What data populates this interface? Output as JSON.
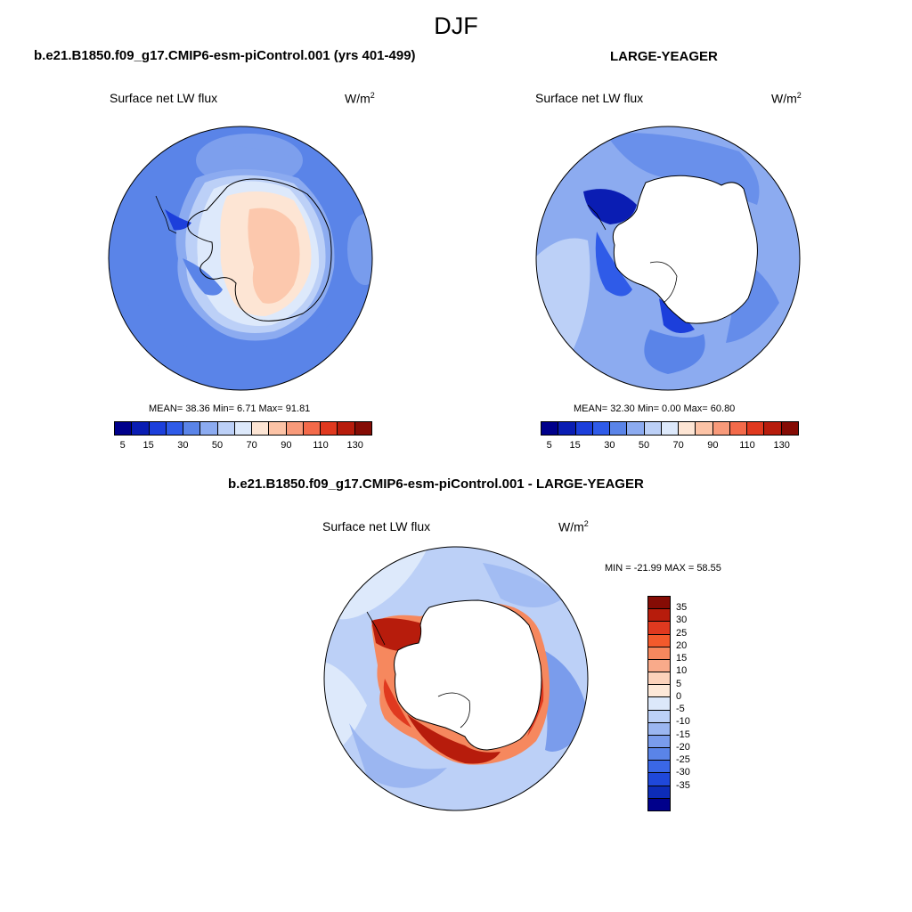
{
  "header": {
    "title": "DJF"
  },
  "panels": [
    {
      "title": "b.e21.B1850.f09_g17.CMIP6-esm-piControl.001 (yrs 401-499)",
      "variable": "Surface net LW flux",
      "units_base": "W/m",
      "units_exp": "2",
      "stats_text": "MEAN=  38.36  Min=   6.71  Max=  91.81"
    },
    {
      "title": "LARGE-YEAGER",
      "variable": "Surface net LW flux",
      "units_base": "W/m",
      "units_exp": "2",
      "stats_text": "MEAN=  32.30  Min=   0.00  Max=  60.80"
    },
    {
      "title": "b.e21.B1850.f09_g17.CMIP6-esm-piControl.001 - LARGE-YEAGER",
      "variable": "Surface net LW flux",
      "units_base": "W/m",
      "units_exp": "2",
      "stats_text": "MIN = -21.99 MAX =  58.55"
    }
  ],
  "colorbar_abs": {
    "colors": [
      "#00008b",
      "#0a1db3",
      "#1c3fdb",
      "#2f5be8",
      "#5a84e8",
      "#8cabf0",
      "#bcd0f7",
      "#dde9fb",
      "#fde5d4",
      "#fcc3a6",
      "#f89a7a",
      "#f36a4a",
      "#e0391f",
      "#b71c0c",
      "#850c05"
    ],
    "tick_labels": [
      "5",
      "15",
      "30",
      "50",
      "70",
      "90",
      "110",
      "130"
    ]
  },
  "colorbar_diff": {
    "colors": [
      "#850c05",
      "#b71c0c",
      "#e0391f",
      "#f35a2c",
      "#f6885e",
      "#f9aa8a",
      "#fcd2bb",
      "#fde8d8",
      "#dce8fa",
      "#bcd0f7",
      "#9bb6f1",
      "#7a9cec",
      "#5a84e8",
      "#3a67e6",
      "#1f48da",
      "#0d2cb8",
      "#00008b"
    ],
    "tick_labels": [
      "35",
      "30",
      "25",
      "20",
      "15",
      "10",
      "5",
      "0",
      "-5",
      "-10",
      "-15",
      "-20",
      "-25",
      "-30",
      "-35"
    ]
  },
  "chart_data": [
    {
      "type": "heatmap",
      "projection": "south-polar-stereographic",
      "title": "b.e21.B1850.f09_g17.CMIP6-esm-piControl.001 (yrs 401-499)",
      "variable": "Surface net LW flux",
      "units": "W/m2",
      "mean": 38.36,
      "min": 6.71,
      "max": 91.81,
      "levels": [
        5,
        10,
        15,
        20,
        30,
        40,
        50,
        60,
        70,
        80,
        90,
        100,
        110,
        120,
        130
      ],
      "legend_position": "bottom"
    },
    {
      "type": "heatmap",
      "projection": "south-polar-stereographic",
      "title": "LARGE-YEAGER",
      "variable": "Surface net LW flux",
      "units": "W/m2",
      "mean": 32.3,
      "min": 0.0,
      "max": 60.8,
      "levels": [
        5,
        10,
        15,
        20,
        30,
        40,
        50,
        60,
        70,
        80,
        90,
        100,
        110,
        120,
        130
      ],
      "legend_position": "bottom"
    },
    {
      "type": "heatmap",
      "projection": "south-polar-stereographic",
      "title": "b.e21.B1850.f09_g17.CMIP6-esm-piControl.001 - LARGE-YEAGER",
      "variable": "Surface net LW flux",
      "units": "W/m2",
      "min": -21.99,
      "max": 58.55,
      "levels": [
        35,
        30,
        25,
        20,
        15,
        10,
        5,
        0,
        -5,
        -10,
        -15,
        -20,
        -25,
        -30,
        -35
      ],
      "legend_position": "right"
    }
  ]
}
